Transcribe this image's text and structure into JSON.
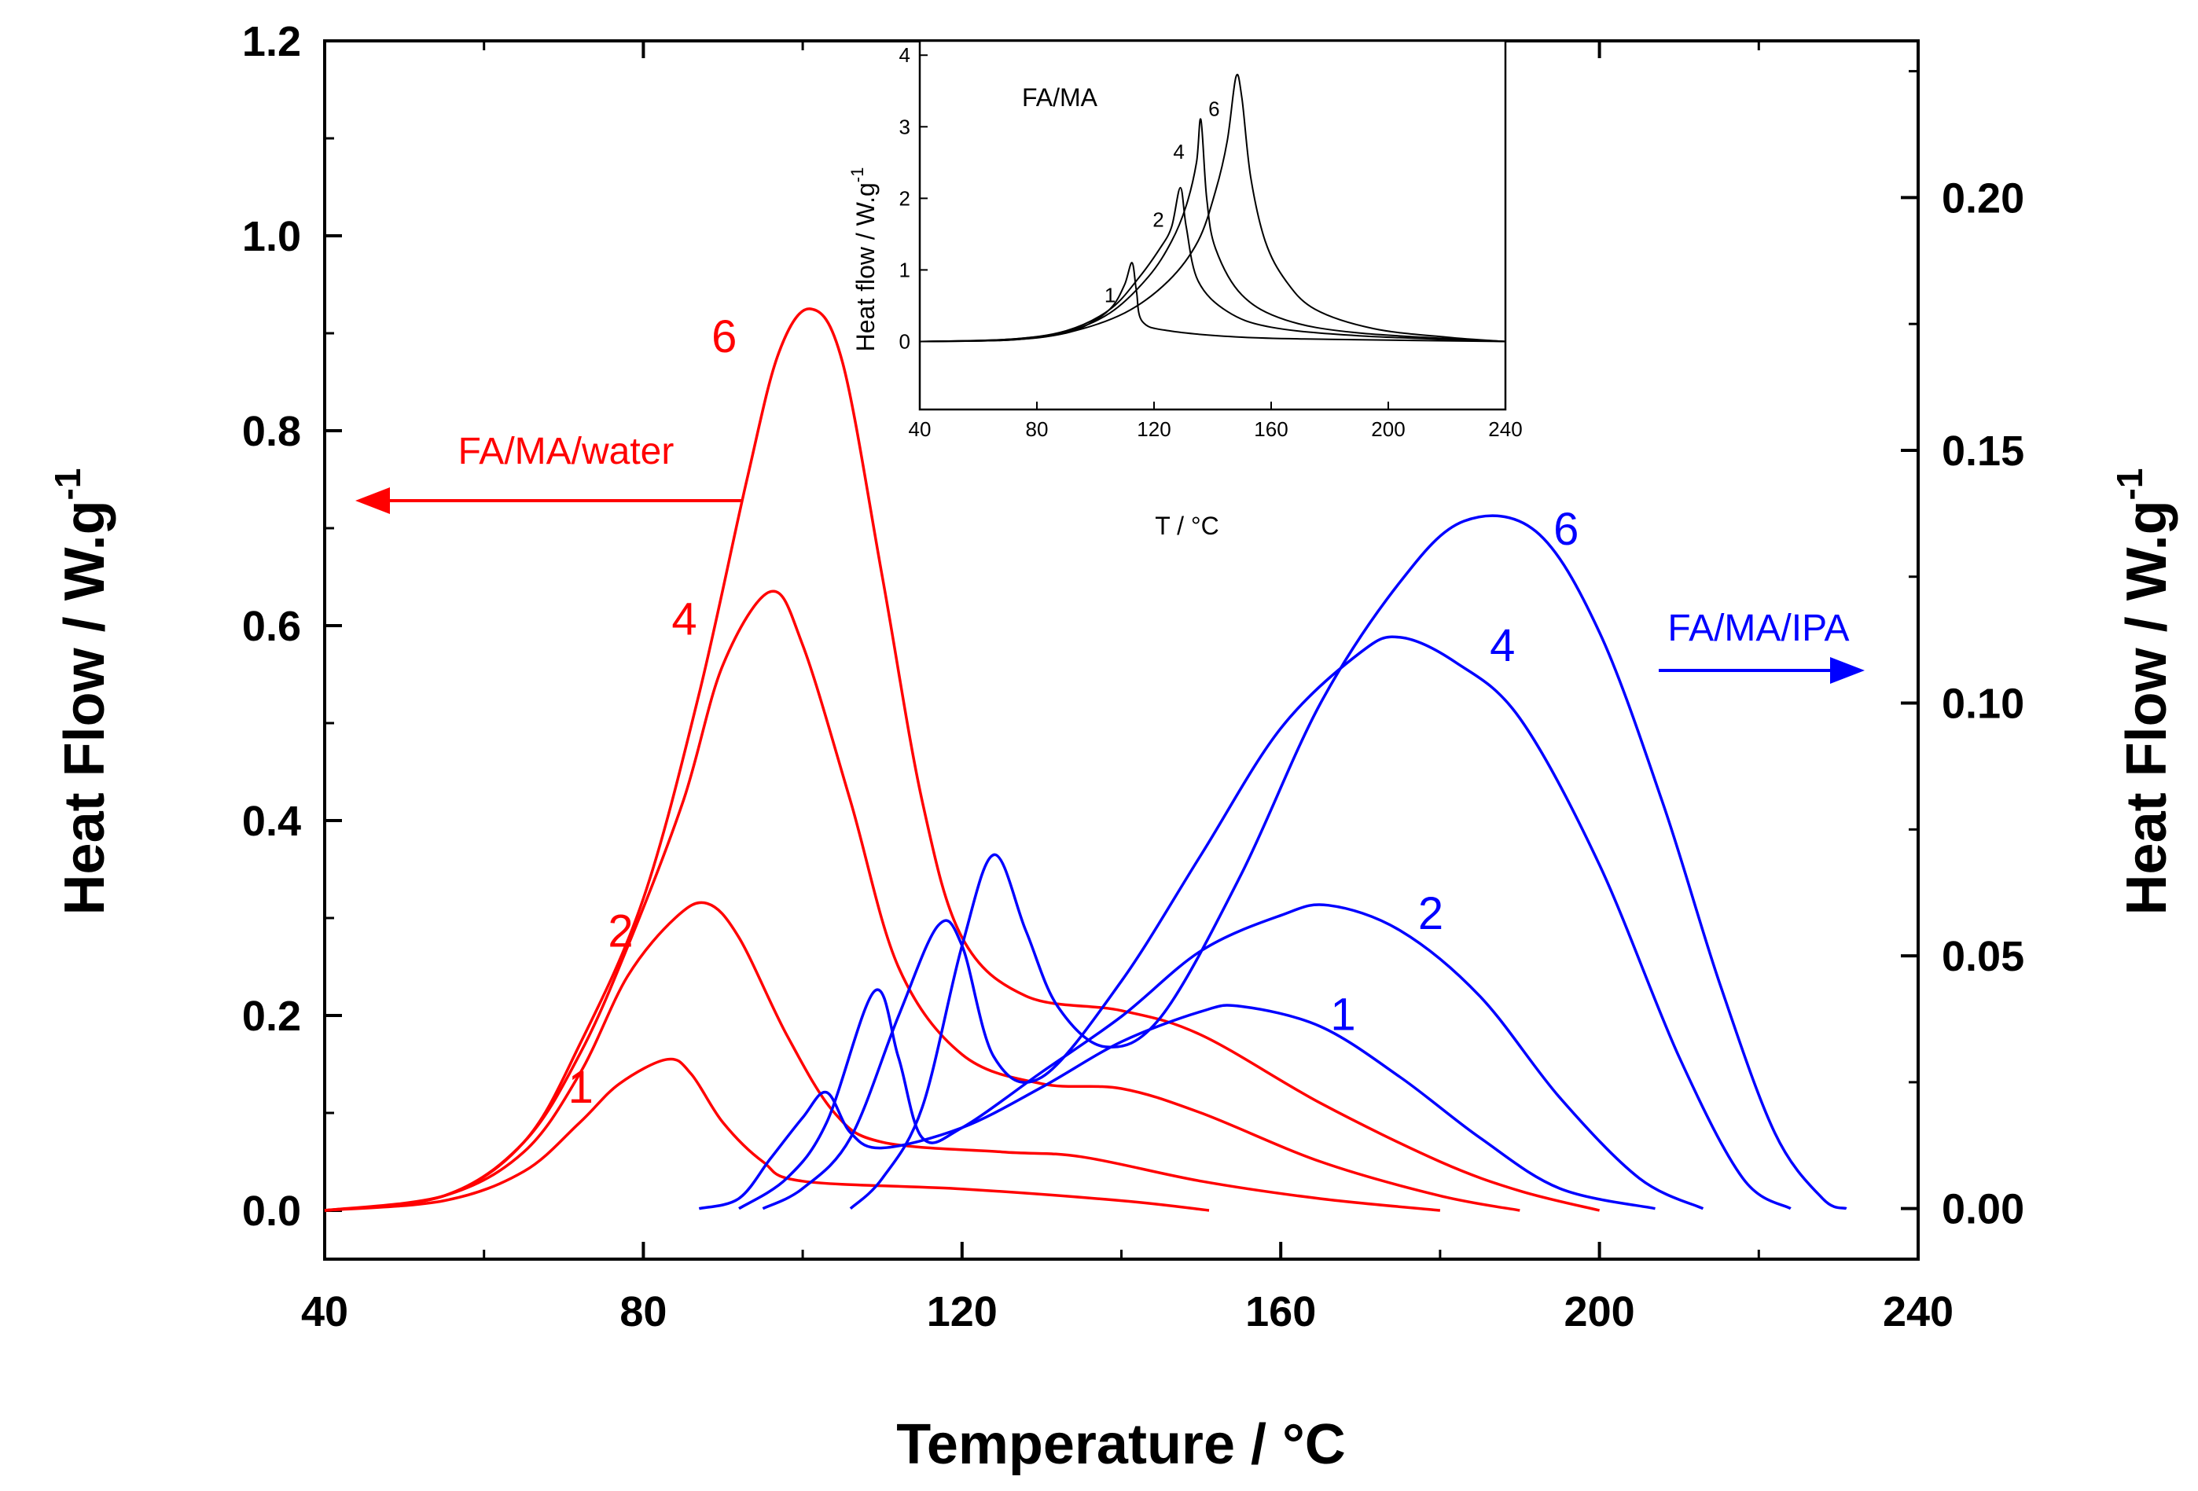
{
  "chart_data": [
    {
      "type": "line",
      "xlabel": "Temperature / °C",
      "ylabel_left": "Heat Flow / W.g",
      "ylabel_right": "Heat Flow / W.g",
      "ylabel_superscript": "-1",
      "xlim": [
        40,
        240
      ],
      "ylim_left": [
        -0.05,
        1.2
      ],
      "ylim_right": [
        -0.01,
        0.231
      ],
      "x_ticks": [
        "40",
        "80",
        "120",
        "160",
        "200",
        "240"
      ],
      "y_left_ticks": [
        "0.0",
        "0.2",
        "0.4",
        "0.6",
        "0.8",
        "1.0",
        "1.2"
      ],
      "y_right_ticks": [
        "0.00",
        "0.05",
        "0.10",
        "0.15",
        "0.20"
      ],
      "colors": {
        "left": "#ff0000",
        "right": "#0000ff",
        "axes": "#000000"
      },
      "annotations": {
        "left_series_group": "FA/MA/water",
        "right_series_group": "FA/MA/IPA"
      },
      "series": [
        {
          "name": "1",
          "group": "FA/MA/water",
          "axis": "left",
          "points": [
            [
              40,
              0
            ],
            [
              55,
              0.01
            ],
            [
              65,
              0.04
            ],
            [
              72,
              0.09
            ],
            [
              77,
              0.13
            ],
            [
              83,
              0.155
            ],
            [
              86,
              0.14
            ],
            [
              90,
              0.09
            ],
            [
              95,
              0.05
            ],
            [
              100,
              0.03
            ],
            [
              120,
              0.022
            ],
            [
              140,
              0.01
            ],
            [
              151,
              0.0
            ]
          ]
        },
        {
          "name": "2",
          "group": "FA/MA/water",
          "axis": "left",
          "points": [
            [
              40,
              0
            ],
            [
              55,
              0.015
            ],
            [
              65,
              0.06
            ],
            [
              72,
              0.14
            ],
            [
              78,
              0.24
            ],
            [
              84,
              0.3
            ],
            [
              88,
              0.315
            ],
            [
              92,
              0.28
            ],
            [
              98,
              0.18
            ],
            [
              104,
              0.1
            ],
            [
              110,
              0.07
            ],
            [
              125,
              0.06
            ],
            [
              135,
              0.055
            ],
            [
              150,
              0.03
            ],
            [
              165,
              0.012
            ],
            [
              180,
              0.0
            ]
          ]
        },
        {
          "name": "4",
          "group": "FA/MA/water",
          "axis": "left",
          "points": [
            [
              40,
              0
            ],
            [
              55,
              0.015
            ],
            [
              65,
              0.07
            ],
            [
              72,
              0.16
            ],
            [
              78,
              0.27
            ],
            [
              85,
              0.42
            ],
            [
              90,
              0.56
            ],
            [
              96,
              0.635
            ],
            [
              100,
              0.58
            ],
            [
              106,
              0.42
            ],
            [
              112,
              0.25
            ],
            [
              120,
              0.16
            ],
            [
              130,
              0.13
            ],
            [
              140,
              0.125
            ],
            [
              150,
              0.1
            ],
            [
              165,
              0.05
            ],
            [
              180,
              0.015
            ],
            [
              190,
              0.0
            ]
          ]
        },
        {
          "name": "6",
          "group": "FA/MA/water",
          "axis": "left",
          "points": [
            [
              40,
              0
            ],
            [
              55,
              0.015
            ],
            [
              65,
              0.07
            ],
            [
              72,
              0.17
            ],
            [
              80,
              0.32
            ],
            [
              87,
              0.53
            ],
            [
              93,
              0.75
            ],
            [
              97,
              0.88
            ],
            [
              101,
              0.925
            ],
            [
              105,
              0.87
            ],
            [
              110,
              0.65
            ],
            [
              115,
              0.42
            ],
            [
              120,
              0.28
            ],
            [
              128,
              0.22
            ],
            [
              140,
              0.205
            ],
            [
              150,
              0.18
            ],
            [
              165,
              0.11
            ],
            [
              180,
              0.05
            ],
            [
              190,
              0.02
            ],
            [
              200,
              0.0
            ]
          ]
        },
        {
          "name": "1",
          "group": "FA/MA/IPA",
          "axis": "right",
          "points": [
            [
              87,
              0
            ],
            [
              92,
              0.002
            ],
            [
              96,
              0.01
            ],
            [
              100,
              0.018
            ],
            [
              103,
              0.023
            ],
            [
              106,
              0.015
            ],
            [
              110,
              0.012
            ],
            [
              120,
              0.016
            ],
            [
              130,
              0.024
            ],
            [
              140,
              0.033
            ],
            [
              150,
              0.039
            ],
            [
              155,
              0.04
            ],
            [
              165,
              0.036
            ],
            [
              175,
              0.026
            ],
            [
              185,
              0.014
            ],
            [
              195,
              0.004
            ],
            [
              207,
              0.0
            ]
          ]
        },
        {
          "name": "2",
          "group": "FA/MA/IPA",
          "axis": "right",
          "points": [
            [
              92,
              0
            ],
            [
              98,
              0.006
            ],
            [
              103,
              0.017
            ],
            [
              109,
              0.043
            ],
            [
              112,
              0.03
            ],
            [
              115,
              0.014
            ],
            [
              120,
              0.016
            ],
            [
              130,
              0.027
            ],
            [
              140,
              0.038
            ],
            [
              150,
              0.051
            ],
            [
              160,
              0.058
            ],
            [
              166,
              0.06
            ],
            [
              175,
              0.055
            ],
            [
              185,
              0.042
            ],
            [
              195,
              0.022
            ],
            [
              205,
              0.006
            ],
            [
              213,
              0.0
            ]
          ]
        },
        {
          "name": "4",
          "group": "FA/MA/IPA",
          "axis": "right",
          "points": [
            [
              95,
              0
            ],
            [
              100,
              0.004
            ],
            [
              106,
              0.014
            ],
            [
              112,
              0.038
            ],
            [
              117,
              0.056
            ],
            [
              120,
              0.052
            ],
            [
              124,
              0.03
            ],
            [
              130,
              0.026
            ],
            [
              140,
              0.045
            ],
            [
              150,
              0.07
            ],
            [
              160,
              0.095
            ],
            [
              170,
              0.11
            ],
            [
              175,
              0.113
            ],
            [
              182,
              0.108
            ],
            [
              190,
              0.097
            ],
            [
              200,
              0.068
            ],
            [
              210,
              0.03
            ],
            [
              218,
              0.006
            ],
            [
              224,
              0.0
            ]
          ]
        },
        {
          "name": "6",
          "group": "FA/MA/IPA",
          "axis": "right",
          "points": [
            [
              106,
              0
            ],
            [
              110,
              0.006
            ],
            [
              115,
              0.02
            ],
            [
              120,
              0.052
            ],
            [
              124,
              0.07
            ],
            [
              128,
              0.055
            ],
            [
              132,
              0.04
            ],
            [
              138,
              0.032
            ],
            [
              145,
              0.038
            ],
            [
              155,
              0.066
            ],
            [
              165,
              0.1
            ],
            [
              175,
              0.124
            ],
            [
              183,
              0.136
            ],
            [
              192,
              0.134
            ],
            [
              200,
              0.114
            ],
            [
              208,
              0.08
            ],
            [
              215,
              0.045
            ],
            [
              222,
              0.015
            ],
            [
              228,
              0.002
            ],
            [
              231,
              0.0
            ]
          ]
        }
      ]
    },
    {
      "type": "line",
      "title": "FA/MA",
      "xlabel": "T / °C",
      "ylabel": "Heat flow / W.g",
      "ylabel_superscript": "-1",
      "xlim": [
        40,
        240
      ],
      "ylim": [
        -0.95,
        4.2
      ],
      "x_ticks": [
        "40",
        "80",
        "120",
        "160",
        "200",
        "240"
      ],
      "y_ticks": [
        "0",
        "1",
        "2",
        "3",
        "4"
      ],
      "series": [
        {
          "name": "1",
          "points": [
            [
              40,
              0
            ],
            [
              70,
              0.02
            ],
            [
              90,
              0.12
            ],
            [
              100,
              0.3
            ],
            [
              106,
              0.5
            ],
            [
              110,
              0.8
            ],
            [
              112.5,
              1.1
            ],
            [
              114,
              0.7
            ],
            [
              116,
              0.28
            ],
            [
              125,
              0.15
            ],
            [
              150,
              0.06
            ],
            [
              180,
              0.03
            ],
            [
              240,
              0.0
            ]
          ]
        },
        {
          "name": "2",
          "points": [
            [
              40,
              0
            ],
            [
              70,
              0.03
            ],
            [
              90,
              0.15
            ],
            [
              105,
              0.45
            ],
            [
              115,
              0.9
            ],
            [
              122,
              1.3
            ],
            [
              126,
              1.6
            ],
            [
              129,
              2.15
            ],
            [
              131,
              1.6
            ],
            [
              135,
              0.85
            ],
            [
              145,
              0.42
            ],
            [
              160,
              0.2
            ],
            [
              190,
              0.08
            ],
            [
              240,
              0.0
            ]
          ]
        },
        {
          "name": "4",
          "points": [
            [
              40,
              0
            ],
            [
              70,
              0.03
            ],
            [
              90,
              0.14
            ],
            [
              105,
              0.4
            ],
            [
              118,
              0.9
            ],
            [
              126,
              1.4
            ],
            [
              131,
              1.9
            ],
            [
              134.5,
              2.5
            ],
            [
              136,
              3.1
            ],
            [
              138,
              2.0
            ],
            [
              141,
              1.3
            ],
            [
              150,
              0.65
            ],
            [
              165,
              0.3
            ],
            [
              190,
              0.12
            ],
            [
              240,
              0.0
            ]
          ]
        },
        {
          "name": "6",
          "points": [
            [
              40,
              0
            ],
            [
              70,
              0.02
            ],
            [
              90,
              0.12
            ],
            [
              110,
              0.4
            ],
            [
              125,
              0.85
            ],
            [
              135,
              1.4
            ],
            [
              141,
              2.1
            ],
            [
              145,
              2.8
            ],
            [
              148,
              3.7
            ],
            [
              150,
              3.4
            ],
            [
              153,
              2.3
            ],
            [
              158,
              1.4
            ],
            [
              165,
              0.85
            ],
            [
              175,
              0.45
            ],
            [
              195,
              0.18
            ],
            [
              220,
              0.06
            ],
            [
              240,
              0.0
            ]
          ]
        }
      ]
    }
  ]
}
